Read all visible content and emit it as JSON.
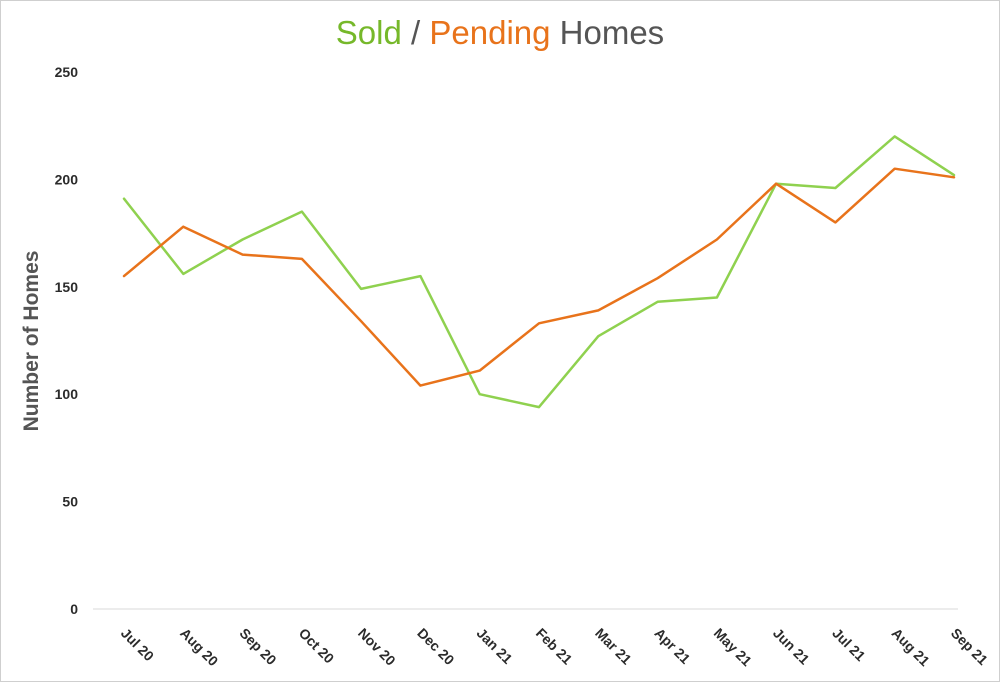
{
  "chart_data": {
    "type": "line",
    "title_parts": [
      {
        "text": "Sold",
        "color": "#76b82a"
      },
      {
        "text": " / ",
        "color": "#555555"
      },
      {
        "text": "Pending",
        "color": "#e8731b"
      },
      {
        "text": " Homes",
        "color": "#555555"
      }
    ],
    "ylabel": "Number of Homes",
    "categories": [
      "Jul 20",
      "Aug 20",
      "Sep 20",
      "Oct 20",
      "Nov 20",
      "Dec 20",
      "Jan 21",
      "Feb 21",
      "Mar 21",
      "Apr 21",
      "May 21",
      "Jun 21",
      "Jul 21",
      "Aug 21",
      "Sep 21"
    ],
    "ylim": [
      0,
      250
    ],
    "yticks": [
      "0",
      "50",
      "100",
      "150",
      "200",
      "250"
    ],
    "grid": false,
    "series": [
      {
        "id": "sold",
        "color": "#8fd14f",
        "values": [
          191,
          156,
          172,
          185,
          149,
          155,
          100,
          94,
          127,
          143,
          145,
          198,
          196,
          220,
          202
        ]
      },
      {
        "id": "pending",
        "color": "#e8731b",
        "values": [
          155,
          178,
          165,
          163,
          134,
          104,
          111,
          133,
          139,
          154,
          172,
          198,
          180,
          205,
          201
        ]
      }
    ]
  }
}
